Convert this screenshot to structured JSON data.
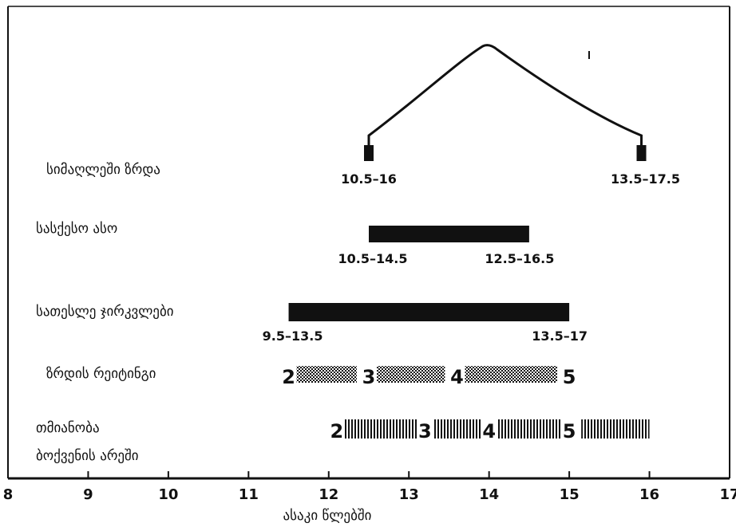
{
  "chart_data": {
    "type": "range-timeline",
    "xlabel": "ასაკი წლებში",
    "xlim": [
      8,
      17
    ],
    "x_ticks": [
      "8",
      "9",
      "10",
      "11",
      "12",
      "13",
      "14",
      "15",
      "16",
      "17"
    ],
    "mark_color": "#111111",
    "rows": [
      {
        "label": "სიმაღლეში ზრდა",
        "kind": "peak",
        "start": 12.5,
        "peak": 14,
        "end": 15.9,
        "start_label": "10.5–16",
        "end_label": "13.5–17.5"
      },
      {
        "label": "სასქესო ასო",
        "kind": "bar",
        "start": 12.5,
        "end": 14.5,
        "start_label": "10.5–14.5",
        "end_label": "12.5–16.5"
      },
      {
        "label": "სათესლე ჯირკვლები",
        "kind": "bar",
        "start": 11.5,
        "end": 15,
        "start_label": "9.5–13.5",
        "end_label": "13.5–17"
      },
      {
        "label": "ზრდის რეიტინგი",
        "kind": "stages",
        "pattern": "dots",
        "stages": [
          {
            "label": "2",
            "at": 11.5
          },
          {
            "label": "3",
            "at": 12.5
          },
          {
            "label": "4",
            "at": 13.6
          },
          {
            "label": "5",
            "at": 15
          }
        ],
        "segments": [
          [
            11.6,
            12.35
          ],
          [
            12.6,
            13.45
          ],
          [
            13.7,
            14.85
          ]
        ]
      },
      {
        "label": "თმიანობა",
        "label_line2": "ბოქვენის არეში",
        "kind": "stages",
        "pattern": "stripes",
        "stages": [
          {
            "label": "2",
            "at": 12.1
          },
          {
            "label": "3",
            "at": 13.2
          },
          {
            "label": "4",
            "at": 14
          },
          {
            "label": "5",
            "at": 15
          }
        ],
        "segments": [
          [
            12.2,
            13.1
          ],
          [
            13.3,
            13.9
          ],
          [
            14.1,
            14.9
          ],
          [
            15.15,
            16
          ]
        ]
      }
    ]
  }
}
